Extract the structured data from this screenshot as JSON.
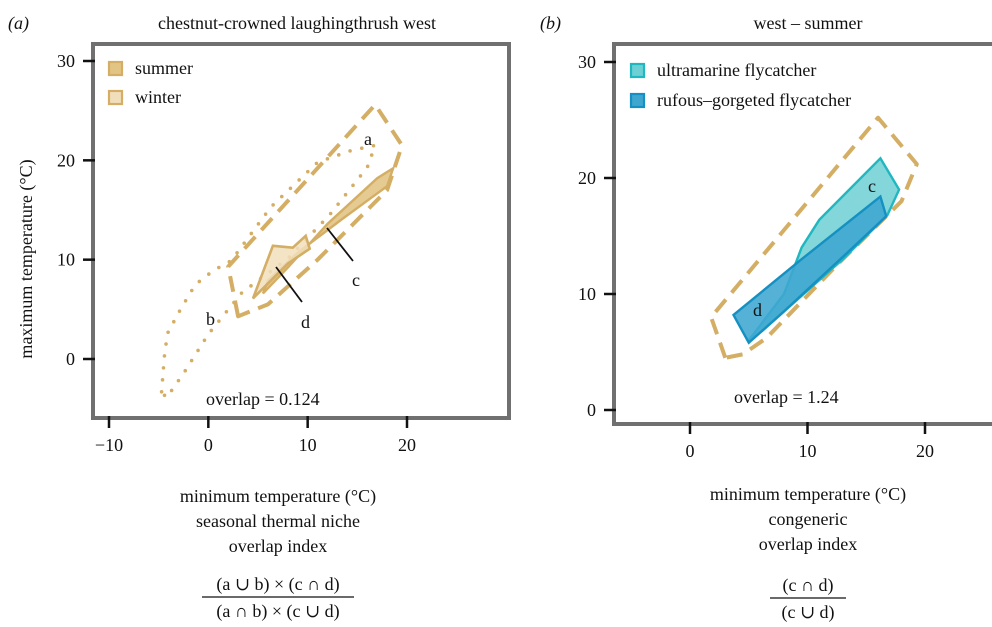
{
  "colors": {
    "gold": "#D4AE64",
    "gold_fill": "#E2C485",
    "gold_fill_light": "#F1DFBC",
    "cyan": "#1FB7C0",
    "cyan_fill": "#6DD0D4",
    "blue": "#1590C2",
    "blue_fill": "#3FA6D0",
    "frame": "#707070"
  },
  "panel_a": {
    "tag": "(a)",
    "title": "chestnut-crowned laughingthrush west",
    "xlabel": "minimum temperature (°C)",
    "ylabel": "maximum temperature (°C)",
    "caption_line1": "seasonal thermal niche",
    "caption_line2": "overlap index",
    "formula_numerator": "(a ∪ b) × (c ∩ d)",
    "formula_denominator": "(a ∩ b) × (c ∪ d)",
    "overlap_text": "overlap = 0.124",
    "legend": [
      {
        "label": "summer",
        "swatch": "gold_fill"
      },
      {
        "label": "winter",
        "swatch": "gold_fill_light"
      }
    ],
    "region_labels": {
      "a": "a",
      "b": "b",
      "c": "c",
      "d": "d"
    }
  },
  "panel_b": {
    "tag": "(b)",
    "title": "west – summer",
    "xlabel": "minimum temperature (°C)",
    "caption_line1": "congeneric",
    "caption_line2": "overlap index",
    "formula_numerator": "(c ∩ d)",
    "formula_denominator": "(c ∪ d)",
    "overlap_text": "overlap = 1.24",
    "legend": [
      {
        "label": "ultramarine flycatcher",
        "swatch": "cyan_fill"
      },
      {
        "label": "rufous–gorgeted flycatcher",
        "swatch": "blue_fill"
      }
    ],
    "region_labels": {
      "c": "c",
      "d": "d"
    }
  },
  "chart_data": [
    {
      "type": "area",
      "title": "chestnut-crowned laughingthrush west",
      "xlabel": "minimum temperature (°C)",
      "ylabel": "maximum temperature (°C)",
      "xlim": [
        -12,
        20
      ],
      "ylim": [
        -7,
        31
      ],
      "xticks": [
        -10,
        0,
        10,
        20
      ],
      "xtick_labels": [
        "−10",
        "0",
        "10",
        "20"
      ],
      "yticks": [
        0,
        10,
        20,
        30
      ],
      "ytick_labels": [
        "0",
        "10",
        "20",
        "30"
      ],
      "grid": false,
      "legend_position": "top-left",
      "series": [
        {
          "name": "summer",
          "style": "solid-filled",
          "region": "c",
          "points": [
            [
              5.5,
              6.6
            ],
            [
              8,
              9.2
            ],
            [
              12,
              13.6
            ],
            [
              17,
              18.2
            ],
            [
              18.6,
              19.2
            ],
            [
              18,
              17.4
            ],
            [
              13.5,
              14.1
            ],
            [
              9,
              10.7
            ],
            [
              6,
              7.9
            ]
          ]
        },
        {
          "name": "winter",
          "style": "solid-filled-light",
          "region": "d",
          "points": [
            [
              4.5,
              6.1
            ],
            [
              6.5,
              11.4
            ],
            [
              8.5,
              11.2
            ],
            [
              9.8,
              12.4
            ],
            [
              10.2,
              11.1
            ],
            [
              8,
              9.6
            ]
          ]
        },
        {
          "name": "summer",
          "style": "dashed-outline",
          "region": "a",
          "points": [
            [
              3,
              4.3
            ],
            [
              2,
              9.3
            ],
            [
              16.8,
              25.6
            ],
            [
              19.5,
              21.5
            ],
            [
              18,
              17
            ],
            [
              11,
              10
            ],
            [
              6,
              5.5
            ]
          ]
        },
        {
          "name": "winter",
          "style": "dotted-outline",
          "region": "b",
          "points": [
            [
              -4.7,
              -3.3
            ],
            [
              -4.4,
              0.5
            ],
            [
              -4.1,
              2.6
            ],
            [
              -2.8,
              5
            ],
            [
              -1.3,
              7.5
            ],
            [
              0.5,
              8.9
            ],
            [
              2.3,
              9.9
            ],
            [
              6.3,
              15.3
            ],
            [
              11,
              19.8
            ],
            [
              14.4,
              21
            ],
            [
              16.8,
              21.5
            ],
            [
              16,
              19.3
            ],
            [
              12.2,
              14.5
            ],
            [
              8,
              10.1
            ],
            [
              3.4,
              6.7
            ],
            [
              0,
              2.5
            ],
            [
              -2.4,
              -1.3
            ],
            [
              -4.2,
              -3.9
            ]
          ]
        }
      ],
      "annotations": [
        {
          "text": "a",
          "x": 16,
          "y": 22
        },
        {
          "text": "b",
          "x": 0.3,
          "y": 4
        },
        {
          "text": "c",
          "x": 14.8,
          "y": 8
        },
        {
          "text": "d",
          "x": 9.8,
          "y": 3.8
        },
        {
          "text": "overlap = 0.124",
          "x": 4.8,
          "y": -4.1
        }
      ]
    },
    {
      "type": "area",
      "title": "west – summer",
      "xlabel": "minimum temperature (°C)",
      "ylabel": "",
      "xlim": [
        -7,
        26
      ],
      "ylim": [
        -1,
        32
      ],
      "xticks": [
        0,
        10,
        20
      ],
      "xtick_labels": [
        "0",
        "10",
        "20"
      ],
      "yticks": [
        0,
        10,
        20,
        30
      ],
      "ytick_labels": [
        "0",
        "10",
        "20",
        "30"
      ],
      "grid": false,
      "legend_position": "top-left",
      "series": [
        {
          "name": "ultramarine flycatcher",
          "style": "solid-filled",
          "region": "c",
          "points": [
            [
              5,
              6
            ],
            [
              8,
              10
            ],
            [
              9.5,
              14
            ],
            [
              11,
              16.4
            ],
            [
              16.2,
              21.7
            ],
            [
              17.8,
              19
            ],
            [
              16.8,
              16.8
            ],
            [
              13,
              13
            ],
            [
              9,
              9.4
            ],
            [
              6,
              6.7
            ]
          ]
        },
        {
          "name": "rufous–gorgeted flycatcher",
          "style": "solid-filled",
          "region": "d",
          "points": [
            [
              3.7,
              8.2
            ],
            [
              9.5,
              13
            ],
            [
              16.2,
              18.4
            ],
            [
              16.7,
              16.7
            ],
            [
              13,
              13.2
            ],
            [
              8,
              8.5
            ],
            [
              5,
              5.8
            ]
          ]
        },
        {
          "name": "summer niche outline",
          "style": "dashed-outline",
          "points": [
            [
              3,
              4.5
            ],
            [
              1.8,
              8
            ],
            [
              16,
              25.2
            ],
            [
              19.3,
              21.2
            ],
            [
              18,
              18
            ],
            [
              12.5,
              12.5
            ],
            [
              6.5,
              6.2
            ],
            [
              4.5,
              4.8
            ]
          ]
        }
      ],
      "annotations": [
        {
          "text": "c",
          "x": 15.8,
          "y": 19.8
        },
        {
          "text": "d",
          "x": 6,
          "y": 9
        },
        {
          "text": "overlap = 1.24",
          "x": 10.3,
          "y": 1.2
        }
      ]
    }
  ]
}
